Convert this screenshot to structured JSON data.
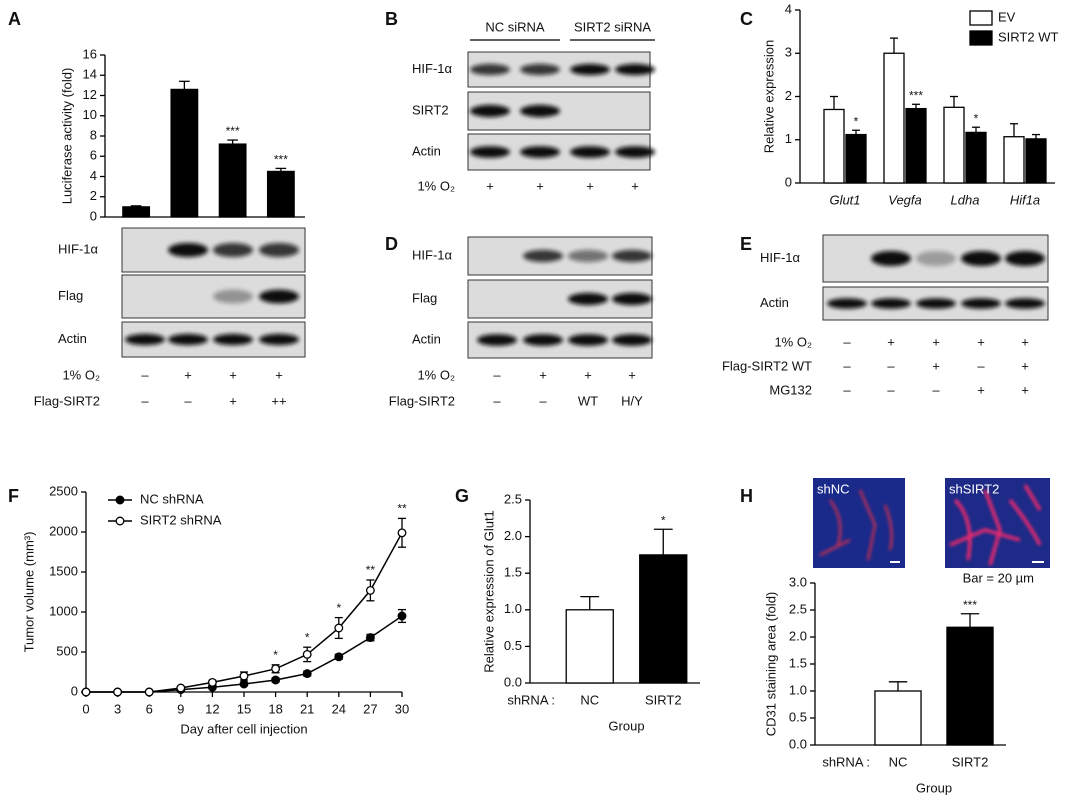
{
  "panel_labels": [
    "A",
    "B",
    "C",
    "D",
    "E",
    "F",
    "G",
    "H"
  ],
  "chart_data": [
    {
      "type": "bar",
      "ylabel": "Luciferase activity (fold)",
      "color": "#000000",
      "values": [
        1.0,
        12.6,
        7.2,
        4.5
      ],
      "errors": [
        0.1,
        0.8,
        0.4,
        0.3
      ],
      "significance": [
        null,
        null,
        "***",
        "***"
      ],
      "ylim": [
        0,
        16
      ],
      "yticks": [
        0,
        2,
        4,
        6,
        8,
        10,
        12,
        14,
        16
      ]
    },
    {
      "type": "bar",
      "ylabel": "Relative expression",
      "categories": [
        "Glut1",
        "Vegfa",
        "Ldha",
        "Hif1a"
      ],
      "series": [
        {
          "name": "EV",
          "color": "#ffffff",
          "values": [
            1.7,
            3.0,
            1.75,
            1.07
          ],
          "errors": [
            0.3,
            0.35,
            0.25,
            0.3
          ],
          "significance": [
            null,
            null,
            null,
            null
          ]
        },
        {
          "name": "SIRT2 WT",
          "color": "#000000",
          "values": [
            1.12,
            1.72,
            1.17,
            1.02
          ],
          "errors": [
            0.1,
            0.1,
            0.12,
            0.1
          ],
          "significance": [
            "*",
            "***",
            "*",
            null
          ]
        }
      ],
      "legend": "upper right",
      "ylim": [
        0,
        4
      ],
      "yticks": [
        0,
        1,
        2,
        3,
        4
      ]
    },
    {
      "type": "line",
      "xlabel": "Day after cell injection",
      "ylabel": "Tumor volume (mm³)",
      "x": [
        0,
        3,
        6,
        9,
        12,
        15,
        18,
        21,
        24,
        27,
        30
      ],
      "series": [
        {
          "name": "NC shRNA",
          "color": "#000000",
          "marker_fill": "#000000",
          "values": [
            0,
            0,
            0,
            30,
            60,
            100,
            150,
            230,
            440,
            680,
            950
          ],
          "errors": [
            0,
            0,
            0,
            10,
            15,
            20,
            25,
            30,
            30,
            40,
            80
          ],
          "significance": [
            null,
            null,
            null,
            null,
            null,
            null,
            null,
            null,
            null,
            null,
            null
          ]
        },
        {
          "name": "SIRT2 shRNA",
          "color": "#000000",
          "marker_fill": "#ffffff",
          "values": [
            0,
            0,
            0,
            50,
            120,
            200,
            290,
            470,
            800,
            1270,
            1990
          ],
          "errors": [
            0,
            0,
            0,
            15,
            25,
            50,
            50,
            90,
            130,
            130,
            180
          ],
          "significance": [
            null,
            null,
            null,
            null,
            null,
            null,
            "*",
            "*",
            "*",
            "**",
            "**"
          ]
        }
      ],
      "legend": "upper left",
      "xlim": [
        0,
        30
      ],
      "xticks": [
        0,
        3,
        6,
        9,
        12,
        15,
        18,
        21,
        24,
        27,
        30
      ],
      "ylim": [
        0,
        2500
      ],
      "yticks": [
        0,
        500,
        1000,
        1500,
        2000,
        2500
      ]
    },
    {
      "type": "bar",
      "ylabel": "Relative expression of Glut1",
      "xlabel": "Group",
      "category_prefix": "shRNA :",
      "categories": [
        "NC",
        "SIRT2"
      ],
      "colors": [
        "#ffffff",
        "#000000"
      ],
      "values": [
        1.0,
        1.75
      ],
      "errors": [
        0.18,
        0.35
      ],
      "significance": [
        null,
        "*"
      ],
      "ylim": [
        0,
        2.5
      ],
      "yticks": [
        {
          "value": 0,
          "label": "0.0"
        },
        0.5,
        {
          "value": 1,
          "label": "1.0"
        },
        1.5,
        {
          "value": 2,
          "label": "2.0"
        },
        2.5
      ]
    },
    {
      "type": "bar",
      "ylabel": "CD31 staining area (fold)",
      "xlabel": "Group",
      "category_prefix": "shRNA :",
      "categories": [
        "NC",
        "SIRT2"
      ],
      "colors": [
        "#ffffff",
        "#000000"
      ],
      "values": [
        1.0,
        2.18
      ],
      "errors": [
        0.17,
        0.25
      ],
      "significance": [
        null,
        "***"
      ],
      "ylim": [
        0,
        3
      ],
      "yticks": [
        {
          "value": 0,
          "label": "0.0"
        },
        0.5,
        {
          "value": 1,
          "label": "1.0"
        },
        1.5,
        {
          "value": 2,
          "label": "2.0"
        },
        2.5,
        {
          "value": 3,
          "label": "3.0"
        }
      ]
    }
  ],
  "blots": [
    {
      "rows": [
        "HIF-1α",
        "Flag",
        "Actin"
      ],
      "conditions": [
        {
          "label": "1% O₂",
          "values": [
            "–",
            "+",
            "+",
            "+"
          ]
        },
        {
          "label": "Flag-SIRT2",
          "values": [
            "–",
            "–",
            "+",
            "++"
          ]
        }
      ]
    },
    {
      "groups": [
        "NC siRNA",
        "SIRT2 siRNA"
      ],
      "rows": [
        "HIF-1α",
        "SIRT2",
        "Actin"
      ],
      "conditions": [
        {
          "label": "1% O₂",
          "values": [
            "+",
            "+",
            "+",
            "+"
          ]
        }
      ]
    },
    {
      "rows": [
        "HIF-1α",
        "Flag",
        "Actin"
      ],
      "conditions": [
        {
          "label": "1% O₂",
          "values": [
            "–",
            "+",
            "+",
            "+"
          ]
        },
        {
          "label": "Flag-SIRT2",
          "values": [
            "–",
            "–",
            "WT",
            "H/Y"
          ]
        }
      ]
    },
    {
      "rows": [
        "HIF-1α",
        "Actin"
      ],
      "conditions": [
        {
          "label": "1% O₂",
          "values": [
            "–",
            "+",
            "+",
            "+",
            "+"
          ]
        },
        {
          "label": "Flag-SIRT2 WT",
          "values": [
            "–",
            "–",
            "+",
            "–",
            "+"
          ]
        },
        {
          "label": "MG132",
          "values": [
            "–",
            "–",
            "–",
            "+",
            "+"
          ]
        }
      ]
    }
  ],
  "micrographs": {
    "images": [
      "shNC",
      "shSIRT2"
    ],
    "scale_bar": "Bar = 20 µm"
  }
}
